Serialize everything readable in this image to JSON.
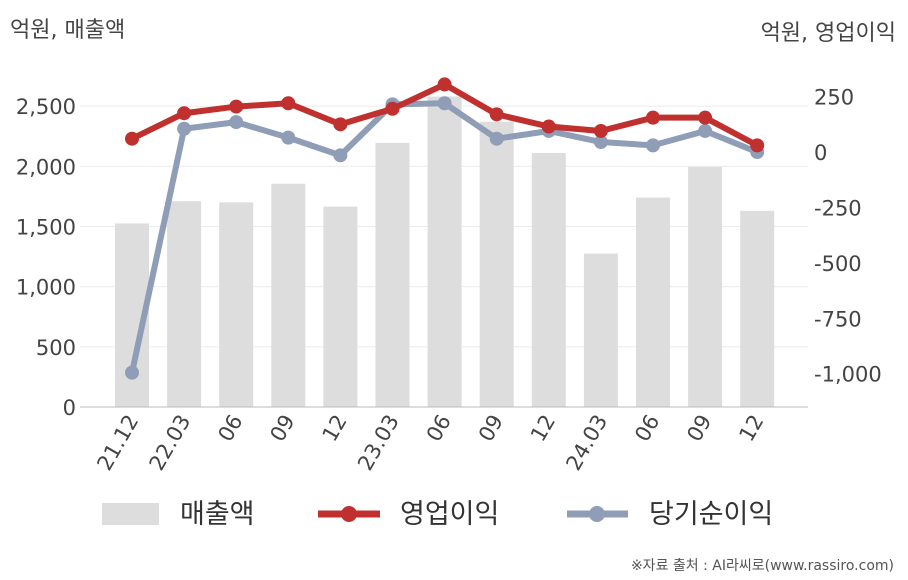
{
  "chart_data": {
    "type": "bar",
    "left_axis_unit": "억원, 매출액",
    "right_axis_unit": "억원, 영업이익",
    "categories": [
      "21.12",
      "22.03",
      "06",
      "09",
      "12",
      "23.03",
      "06",
      "09",
      "12",
      "24.03",
      "06",
      "09",
      "12"
    ],
    "left_ylim": [
      0,
      2800
    ],
    "left_ticks": [
      0,
      500,
      1000,
      1500,
      2000,
      2500
    ],
    "left_tick_labels": [
      "0",
      "500",
      "1,000",
      "1,500",
      "2,000",
      "2,500"
    ],
    "right_ylim": [
      -1150,
      370
    ],
    "right_ticks": [
      -1000,
      -750,
      -500,
      -250,
      0,
      250
    ],
    "right_tick_labels": [
      "-1,000",
      "-750",
      "-500",
      "-250",
      "0",
      "250"
    ],
    "grid": true,
    "legend_position": "bottom",
    "series": [
      {
        "name": "매출액",
        "type": "bar",
        "axis": "left",
        "color": "#dddddd",
        "values": [
          1525,
          1710,
          1700,
          1855,
          1665,
          2195,
          2580,
          2370,
          2110,
          1275,
          1740,
          1995,
          1630
        ]
      },
      {
        "name": "영업이익",
        "type": "line",
        "axis": "right",
        "color": "#c0302e",
        "values": [
          60,
          175,
          205,
          220,
          125,
          195,
          305,
          170,
          115,
          95,
          155,
          155,
          30
        ]
      },
      {
        "name": "당기순이익",
        "type": "line",
        "axis": "right",
        "color": "#8f9db7",
        "values": [
          -995,
          105,
          135,
          65,
          -15,
          215,
          220,
          60,
          95,
          45,
          30,
          95,
          0
        ]
      }
    ]
  },
  "source": "※자료 출처 : AI라씨로(www.rassiro.com)"
}
